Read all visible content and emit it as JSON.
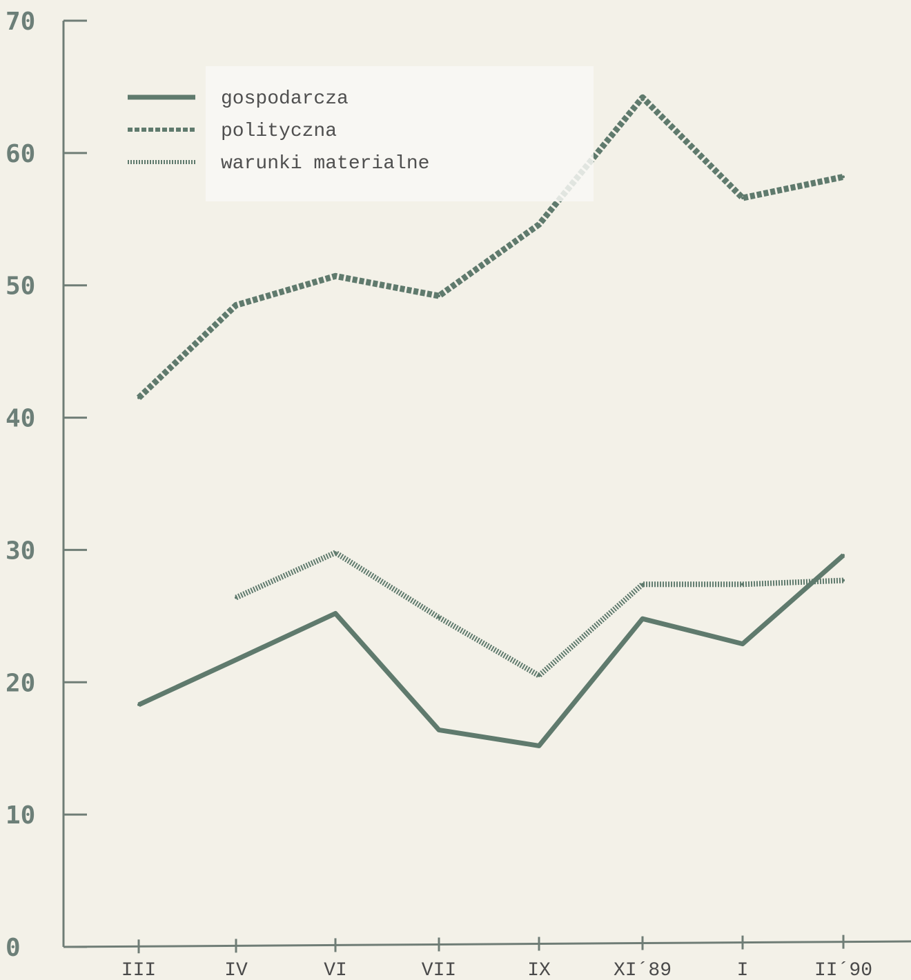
{
  "colors": {
    "background": "#f3f1e8",
    "axis": "#6f7d76",
    "series_line": "#5f7a6d",
    "legend_box": "#f8f8f4"
  },
  "chart_data": {
    "type": "line",
    "title": "",
    "xlabel": "",
    "ylabel": "",
    "ylim": [
      0,
      70
    ],
    "y_ticks": [
      "0",
      "10",
      "20",
      "30",
      "40",
      "50",
      "60",
      "70"
    ],
    "categories": [
      "III",
      "IV",
      "VI",
      "VII",
      "IX",
      "XI´89",
      "I",
      "II´90"
    ],
    "grid": false,
    "legend_position": "top-left",
    "series": [
      {
        "name": "gospodarcza",
        "style": "solid",
        "values": [
          18.3,
          21.7,
          25.2,
          16.4,
          15.2,
          24.8,
          22.9,
          29.6
        ]
      },
      {
        "name": "polityczna",
        "style": "dashed",
        "values": [
          41.5,
          48.5,
          50.7,
          49.2,
          54.6,
          64.2,
          56.6,
          58.2
        ]
      },
      {
        "name": "warunki materialne",
        "style": "dotted",
        "values": [
          null,
          26.4,
          29.8,
          24.9,
          20.5,
          27.4,
          27.4,
          27.7
        ]
      }
    ]
  }
}
